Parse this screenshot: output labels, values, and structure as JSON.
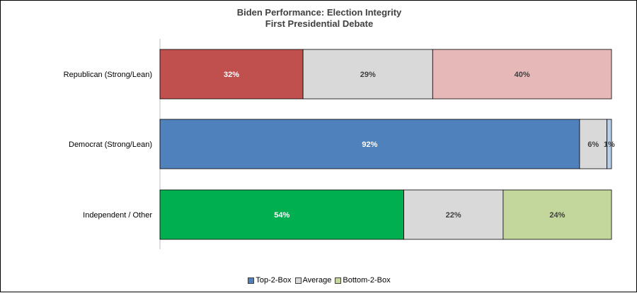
{
  "chart_data": {
    "type": "bar",
    "orientation": "horizontal",
    "stacked": true,
    "title": "Biden Performance:  Election Integrity",
    "subtitle": "First Presidential Debate",
    "categories": [
      "Republican (Strong/Lean)",
      "Democrat (Strong/Lean)",
      "Independent / Other"
    ],
    "series": [
      {
        "name": "Top-2-Box",
        "values": [
          32,
          92,
          54
        ],
        "colors": [
          "#c0504d",
          "#4f81bd",
          "#00b050"
        ],
        "label_color": "#ffffff"
      },
      {
        "name": "Average",
        "values": [
          29,
          6,
          22
        ],
        "colors": [
          "#d9d9d9",
          "#d9d9d9",
          "#d9d9d9"
        ],
        "label_color": "#404040"
      },
      {
        "name": "Bottom-2-Box",
        "values": [
          40,
          1,
          24
        ],
        "colors": [
          "#e6b9b8",
          "#b9cde5",
          "#c3d69b"
        ],
        "label_color": "#404040"
      }
    ],
    "value_labels": [
      [
        "32%",
        "29%",
        "40%"
      ],
      [
        "92%",
        "6%",
        "1%"
      ],
      [
        "54%",
        "22%",
        "24%"
      ]
    ],
    "legend_position": "bottom",
    "legend_swatch_colors": [
      "#4f81bd",
      "#d9d9d9",
      "#c3d69b"
    ],
    "grid": false
  }
}
